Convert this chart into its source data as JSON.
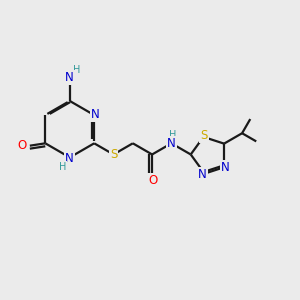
{
  "bg_color": "#ebebeb",
  "bond_color": "#1a1a1a",
  "N_color": "#0000cd",
  "O_color": "#ff0000",
  "S_color": "#ccaa00",
  "H_color": "#339999",
  "line_width": 1.6,
  "font_size": 8.5,
  "figsize": [
    3.0,
    3.0
  ],
  "dpi": 100,
  "xlim": [
    0,
    10
  ],
  "ylim": [
    0,
    10
  ]
}
